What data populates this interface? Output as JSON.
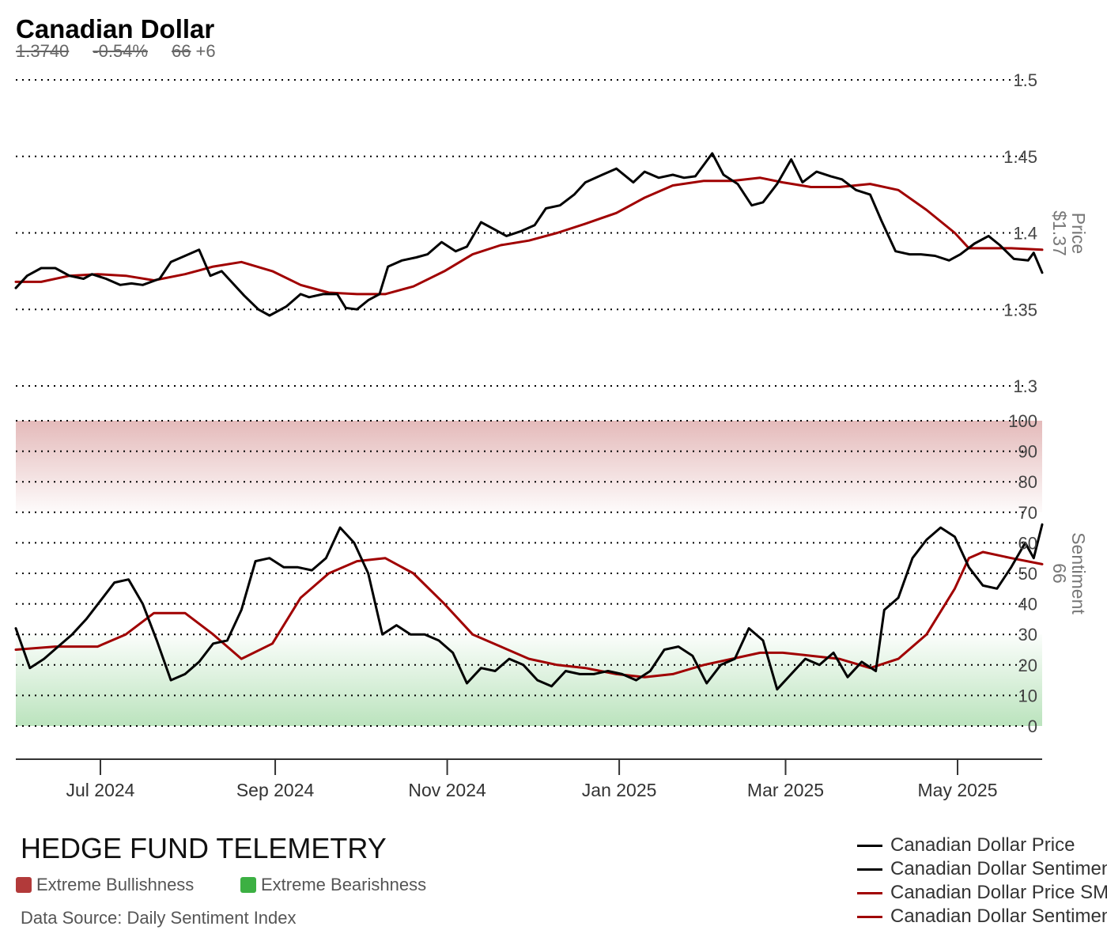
{
  "header": {
    "title": "Canadian Dollar",
    "price": "1.3740",
    "change": "-0.54%",
    "sentiment": "66",
    "sentiment_change": "+6"
  },
  "brand": "HEDGE FUND TELEMETRY",
  "zone_legend": {
    "bull_label": "Extreme Bullishness",
    "bull_color": "#b23a3a",
    "bear_label": "Extreme Bearishness",
    "bear_color": "#3cb043"
  },
  "source": "Data Source: Daily Sentiment Index",
  "legend": [
    {
      "label": "Canadian Dollar Price",
      "color": "#000000"
    },
    {
      "label": "Canadian Dollar Sentiment",
      "color": "#000000"
    },
    {
      "label": "Canadian Dollar Price SMA",
      "color": "#a00000"
    },
    {
      "label": "Canadian Dollar Sentiment SMA",
      "color": "#a00000"
    }
  ],
  "chart_data": {
    "type": "line",
    "x_ticks": [
      "Jul 2024",
      "Sep 2024",
      "Nov 2024",
      "Jan 2025",
      "Mar 2025",
      "May 2025"
    ],
    "x_range": [
      "2024-06-01",
      "2025-05-31"
    ],
    "price_panel": {
      "axis_label": "Price",
      "axis_value": "$1.37",
      "ylim": [
        1.3,
        1.5
      ],
      "ticks": [
        "1.3",
        "1.35",
        "1.4",
        "1.45",
        "1.5"
      ],
      "series": [
        {
          "name": "Canadian Dollar Price",
          "color": "#000000",
          "points": [
            [
              "2024-06-01",
              1.364
            ],
            [
              "2024-06-05",
              1.372
            ],
            [
              "2024-06-10",
              1.377
            ],
            [
              "2024-06-15",
              1.377
            ],
            [
              "2024-06-20",
              1.372
            ],
            [
              "2024-06-25",
              1.37
            ],
            [
              "2024-06-28",
              1.373
            ],
            [
              "2024-07-03",
              1.37
            ],
            [
              "2024-07-08",
              1.366
            ],
            [
              "2024-07-12",
              1.367
            ],
            [
              "2024-07-16",
              1.366
            ],
            [
              "2024-07-22",
              1.37
            ],
            [
              "2024-07-26",
              1.381
            ],
            [
              "2024-07-31",
              1.385
            ],
            [
              "2024-08-05",
              1.389
            ],
            [
              "2024-08-09",
              1.372
            ],
            [
              "2024-08-13",
              1.375
            ],
            [
              "2024-08-16",
              1.369
            ],
            [
              "2024-08-21",
              1.359
            ],
            [
              "2024-08-26",
              1.35
            ],
            [
              "2024-08-30",
              1.346
            ],
            [
              "2024-09-05",
              1.352
            ],
            [
              "2024-09-10",
              1.36
            ],
            [
              "2024-09-13",
              1.358
            ],
            [
              "2024-09-18",
              1.36
            ],
            [
              "2024-09-23",
              1.36
            ],
            [
              "2024-09-26",
              1.351
            ],
            [
              "2024-09-30",
              1.35
            ],
            [
              "2024-10-04",
              1.356
            ],
            [
              "2024-10-08",
              1.36
            ],
            [
              "2024-10-11",
              1.378
            ],
            [
              "2024-10-16",
              1.382
            ],
            [
              "2024-10-21",
              1.384
            ],
            [
              "2024-10-25",
              1.386
            ],
            [
              "2024-10-30",
              1.394
            ],
            [
              "2024-11-04",
              1.388
            ],
            [
              "2024-11-08",
              1.391
            ],
            [
              "2024-11-13",
              1.407
            ],
            [
              "2024-11-18",
              1.402
            ],
            [
              "2024-11-22",
              1.398
            ],
            [
              "2024-11-27",
              1.401
            ],
            [
              "2024-12-02",
              1.405
            ],
            [
              "2024-12-06",
              1.416
            ],
            [
              "2024-12-11",
              1.418
            ],
            [
              "2024-12-16",
              1.425
            ],
            [
              "2024-12-20",
              1.433
            ],
            [
              "2024-12-26",
              1.438
            ],
            [
              "2024-12-31",
              1.442
            ],
            [
              "2025-01-06",
              1.433
            ],
            [
              "2025-01-10",
              1.44
            ],
            [
              "2025-01-15",
              1.436
            ],
            [
              "2025-01-20",
              1.438
            ],
            [
              "2025-01-24",
              1.436
            ],
            [
              "2025-01-28",
              1.437
            ],
            [
              "2025-02-03",
              1.452
            ],
            [
              "2025-02-07",
              1.438
            ],
            [
              "2025-02-12",
              1.432
            ],
            [
              "2025-02-17",
              1.418
            ],
            [
              "2025-02-21",
              1.42
            ],
            [
              "2025-02-26",
              1.432
            ],
            [
              "2025-03-03",
              1.448
            ],
            [
              "2025-03-07",
              1.433
            ],
            [
              "2025-03-12",
              1.44
            ],
            [
              "2025-03-17",
              1.437
            ],
            [
              "2025-03-21",
              1.435
            ],
            [
              "2025-03-26",
              1.428
            ],
            [
              "2025-03-31",
              1.425
            ],
            [
              "2025-04-04",
              1.408
            ],
            [
              "2025-04-09",
              1.388
            ],
            [
              "2025-04-14",
              1.386
            ],
            [
              "2025-04-18",
              1.386
            ],
            [
              "2025-04-23",
              1.385
            ],
            [
              "2025-04-28",
              1.382
            ],
            [
              "2025-05-02",
              1.386
            ],
            [
              "2025-05-07",
              1.393
            ],
            [
              "2025-05-12",
              1.398
            ],
            [
              "2025-05-16",
              1.392
            ],
            [
              "2025-05-21",
              1.383
            ],
            [
              "2025-05-26",
              1.382
            ],
            [
              "2025-05-28",
              1.387
            ],
            [
              "2025-05-31",
              1.374
            ]
          ]
        },
        {
          "name": "Canadian Dollar Price SMA",
          "color": "#a00000",
          "points": [
            [
              "2024-06-01",
              1.368
            ],
            [
              "2024-06-10",
              1.368
            ],
            [
              "2024-06-20",
              1.372
            ],
            [
              "2024-06-30",
              1.373
            ],
            [
              "2024-07-10",
              1.372
            ],
            [
              "2024-07-20",
              1.369
            ],
            [
              "2024-07-31",
              1.373
            ],
            [
              "2024-08-10",
              1.378
            ],
            [
              "2024-08-20",
              1.381
            ],
            [
              "2024-08-31",
              1.375
            ],
            [
              "2024-09-10",
              1.366
            ],
            [
              "2024-09-20",
              1.361
            ],
            [
              "2024-09-30",
              1.36
            ],
            [
              "2024-10-10",
              1.36
            ],
            [
              "2024-10-20",
              1.365
            ],
            [
              "2024-10-31",
              1.375
            ],
            [
              "2024-11-10",
              1.386
            ],
            [
              "2024-11-20",
              1.392
            ],
            [
              "2024-11-30",
              1.395
            ],
            [
              "2024-12-10",
              1.4
            ],
            [
              "2024-12-20",
              1.406
            ],
            [
              "2024-12-31",
              1.413
            ],
            [
              "2025-01-10",
              1.423
            ],
            [
              "2025-01-20",
              1.431
            ],
            [
              "2025-01-31",
              1.434
            ],
            [
              "2025-02-10",
              1.434
            ],
            [
              "2025-02-20",
              1.436
            ],
            [
              "2025-02-28",
              1.433
            ],
            [
              "2025-03-10",
              1.43
            ],
            [
              "2025-03-20",
              1.43
            ],
            [
              "2025-03-31",
              1.432
            ],
            [
              "2025-04-10",
              1.428
            ],
            [
              "2025-04-20",
              1.415
            ],
            [
              "2025-04-30",
              1.4
            ],
            [
              "2025-05-05",
              1.39
            ],
            [
              "2025-05-10",
              1.39
            ],
            [
              "2025-05-20",
              1.39
            ],
            [
              "2025-05-31",
              1.389
            ]
          ]
        }
      ]
    },
    "sentiment_panel": {
      "axis_label": "Sentiment",
      "axis_value": "66",
      "ylim": [
        0,
        100
      ],
      "ticks": [
        "0",
        "10",
        "20",
        "30",
        "40",
        "50",
        "60",
        "70",
        "80",
        "90",
        "100"
      ],
      "zones": [
        {
          "name": "Extreme Bullishness",
          "from": 70,
          "to": 100,
          "color": "#b23a3a"
        },
        {
          "name": "Extreme Bearishness",
          "from": 0,
          "to": 30,
          "color": "#3cb043"
        }
      ],
      "series": [
        {
          "name": "Canadian Dollar Sentiment",
          "color": "#000000",
          "points": [
            [
              "2024-06-01",
              32
            ],
            [
              "2024-06-06",
              19
            ],
            [
              "2024-06-11",
              22
            ],
            [
              "2024-06-16",
              26
            ],
            [
              "2024-06-21",
              30
            ],
            [
              "2024-06-26",
              35
            ],
            [
              "2024-07-01",
              41
            ],
            [
              "2024-07-06",
              47
            ],
            [
              "2024-07-11",
              48
            ],
            [
              "2024-07-16",
              40
            ],
            [
              "2024-07-21",
              28
            ],
            [
              "2024-07-26",
              15
            ],
            [
              "2024-07-31",
              17
            ],
            [
              "2024-08-05",
              21
            ],
            [
              "2024-08-10",
              27
            ],
            [
              "2024-08-15",
              28
            ],
            [
              "2024-08-20",
              38
            ],
            [
              "2024-08-25",
              54
            ],
            [
              "2024-08-30",
              55
            ],
            [
              "2024-09-04",
              52
            ],
            [
              "2024-09-09",
              52
            ],
            [
              "2024-09-14",
              51
            ],
            [
              "2024-09-19",
              55
            ],
            [
              "2024-09-24",
              65
            ],
            [
              "2024-09-29",
              60
            ],
            [
              "2024-10-04",
              50
            ],
            [
              "2024-10-09",
              30
            ],
            [
              "2024-10-14",
              33
            ],
            [
              "2024-10-19",
              30
            ],
            [
              "2024-10-24",
              30
            ],
            [
              "2024-10-29",
              28
            ],
            [
              "2024-11-03",
              24
            ],
            [
              "2024-11-08",
              14
            ],
            [
              "2024-11-13",
              19
            ],
            [
              "2024-11-18",
              18
            ],
            [
              "2024-11-23",
              22
            ],
            [
              "2024-11-28",
              20
            ],
            [
              "2024-12-03",
              15
            ],
            [
              "2024-12-08",
              13
            ],
            [
              "2024-12-13",
              18
            ],
            [
              "2024-12-18",
              17
            ],
            [
              "2024-12-23",
              17
            ],
            [
              "2024-12-28",
              18
            ],
            [
              "2025-01-02",
              17
            ],
            [
              "2025-01-07",
              15
            ],
            [
              "2025-01-12",
              18
            ],
            [
              "2025-01-17",
              25
            ],
            [
              "2025-01-22",
              26
            ],
            [
              "2025-01-27",
              23
            ],
            [
              "2025-02-01",
              14
            ],
            [
              "2025-02-06",
              20
            ],
            [
              "2025-02-11",
              22
            ],
            [
              "2025-02-16",
              32
            ],
            [
              "2025-02-21",
              28
            ],
            [
              "2025-02-26",
              12
            ],
            [
              "2025-03-03",
              17
            ],
            [
              "2025-03-08",
              22
            ],
            [
              "2025-03-13",
              20
            ],
            [
              "2025-03-18",
              24
            ],
            [
              "2025-03-23",
              16
            ],
            [
              "2025-03-28",
              21
            ],
            [
              "2025-04-02",
              18
            ],
            [
              "2025-04-05",
              38
            ],
            [
              "2025-04-10",
              42
            ],
            [
              "2025-04-15",
              55
            ],
            [
              "2025-04-20",
              61
            ],
            [
              "2025-04-25",
              65
            ],
            [
              "2025-04-30",
              62
            ],
            [
              "2025-05-05",
              52
            ],
            [
              "2025-05-10",
              46
            ],
            [
              "2025-05-15",
              45
            ],
            [
              "2025-05-20",
              52
            ],
            [
              "2025-05-25",
              60
            ],
            [
              "2025-05-28",
              55
            ],
            [
              "2025-05-31",
              66
            ]
          ]
        },
        {
          "name": "Canadian Dollar Sentiment SMA",
          "color": "#a00000",
          "points": [
            [
              "2024-06-01",
              25
            ],
            [
              "2024-06-15",
              26
            ],
            [
              "2024-06-30",
              26
            ],
            [
              "2024-07-10",
              30
            ],
            [
              "2024-07-20",
              37
            ],
            [
              "2024-07-31",
              37
            ],
            [
              "2024-08-10",
              30
            ],
            [
              "2024-08-20",
              22
            ],
            [
              "2024-08-31",
              27
            ],
            [
              "2024-09-10",
              42
            ],
            [
              "2024-09-20",
              50
            ],
            [
              "2024-09-30",
              54
            ],
            [
              "2024-10-10",
              55
            ],
            [
              "2024-10-20",
              50
            ],
            [
              "2024-10-31",
              40
            ],
            [
              "2024-11-10",
              30
            ],
            [
              "2024-11-20",
              26
            ],
            [
              "2024-11-30",
              22
            ],
            [
              "2024-12-10",
              20
            ],
            [
              "2024-12-20",
              19
            ],
            [
              "2024-12-31",
              17
            ],
            [
              "2025-01-10",
              16
            ],
            [
              "2025-01-20",
              17
            ],
            [
              "2025-01-31",
              20
            ],
            [
              "2025-02-10",
              22
            ],
            [
              "2025-02-20",
              24
            ],
            [
              "2025-02-28",
              24
            ],
            [
              "2025-03-10",
              23
            ],
            [
              "2025-03-20",
              22
            ],
            [
              "2025-03-31",
              19
            ],
            [
              "2025-04-10",
              22
            ],
            [
              "2025-04-20",
              30
            ],
            [
              "2025-04-30",
              45
            ],
            [
              "2025-05-05",
              55
            ],
            [
              "2025-05-10",
              57
            ],
            [
              "2025-05-20",
              55
            ],
            [
              "2025-05-31",
              53
            ]
          ]
        }
      ]
    }
  }
}
